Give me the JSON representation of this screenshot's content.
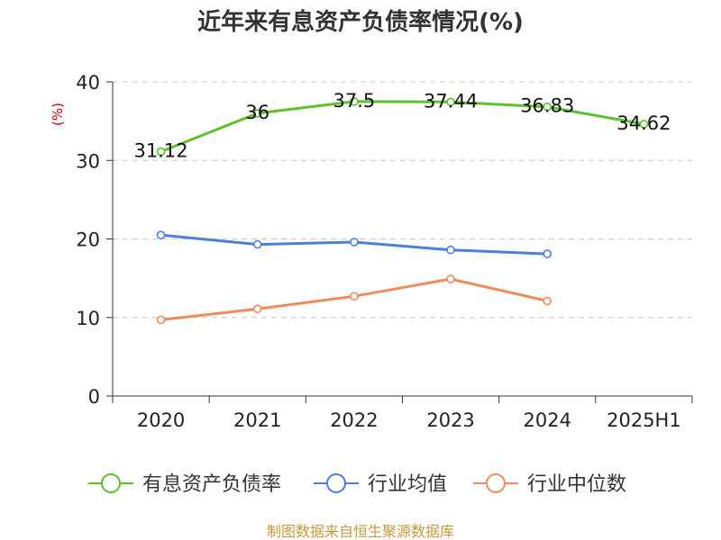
{
  "chart_data": {
    "type": "line",
    "title": "近年来有息资产负债率情况(%)",
    "ylabel": "(%)",
    "categories": [
      "2020",
      "2021",
      "2022",
      "2023",
      "2024",
      "2025H1"
    ],
    "ylim": [
      0,
      40
    ],
    "yticks": [
      0,
      10,
      20,
      30,
      40
    ],
    "grid": true,
    "legend_position": "bottom",
    "series": [
      {
        "name": "有息资产负债率",
        "color": "#5cc12d",
        "values": [
          31.12,
          36,
          37.5,
          37.44,
          36.83,
          34.62
        ],
        "labels": [
          "31.12",
          "36",
          "37.5",
          "37.44",
          "36.83",
          "34.62"
        ]
      },
      {
        "name": "行业均值",
        "color": "#4a7fdc",
        "values": [
          20.5,
          19.3,
          19.6,
          18.6,
          18.1,
          null
        ]
      },
      {
        "name": "行业中位数",
        "color": "#f28b5b",
        "values": [
          9.7,
          11.1,
          12.7,
          14.9,
          12.1,
          null
        ]
      }
    ]
  },
  "source": "制图数据来自恒生聚源数据库"
}
